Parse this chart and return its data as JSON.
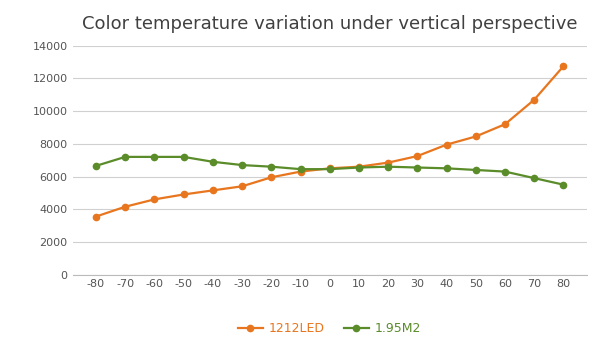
{
  "title": "Color temperature variation under vertical perspective",
  "x": [
    -80,
    -70,
    -60,
    -50,
    -40,
    -30,
    -20,
    -10,
    0,
    10,
    20,
    30,
    40,
    50,
    60,
    70,
    80
  ],
  "led_1212": [
    3550,
    4150,
    4600,
    4900,
    5150,
    5400,
    5950,
    6300,
    6500,
    6600,
    6850,
    7250,
    7950,
    8450,
    9200,
    10700,
    12750
  ],
  "led_195m2": [
    6650,
    7200,
    7200,
    7200,
    6900,
    6700,
    6600,
    6450,
    6450,
    6550,
    6600,
    6550,
    6500,
    6400,
    6300,
    5900,
    5500
  ],
  "color_1212": "#E8761E",
  "color_195m2": "#5B8C2A",
  "marker": "o",
  "markersize": 4.5,
  "linewidth": 1.6,
  "ylim": [
    0,
    14000
  ],
  "yticks": [
    0,
    2000,
    4000,
    6000,
    8000,
    10000,
    12000,
    14000
  ],
  "xticks": [
    -80,
    -70,
    -60,
    -50,
    -40,
    -30,
    -20,
    -10,
    0,
    10,
    20,
    30,
    40,
    50,
    60,
    70,
    80
  ],
  "legend_labels": [
    "1212LED",
    "1.95M2"
  ],
  "bg_color": "#ffffff",
  "grid_color": "#d0d0d0",
  "title_fontsize": 13,
  "tick_fontsize": 8,
  "title_color": "#404040"
}
